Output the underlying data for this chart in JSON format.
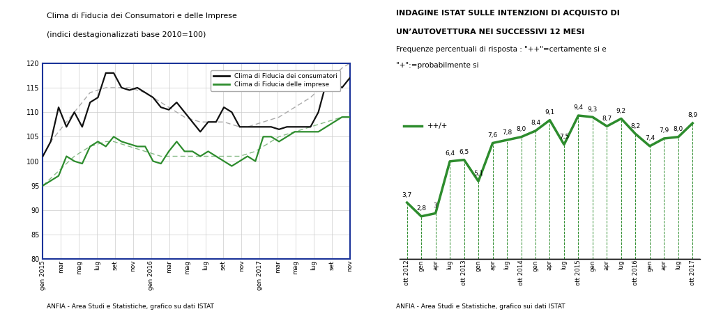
{
  "left_title_line1": "Clima di Fiducia dei Consumatori e delle Imprese",
  "left_title_line2": "(indici destagionalizzati base 2010=100)",
  "left_footer": "ANFIA - Area Studi e Statistiche, grafico su dati ISTAT",
  "left_legend1": "Clima di Fiducia dei consumatori",
  "left_legend2": "Clima di Fiducia delle imprese",
  "left_xticks": [
    "gen 2015",
    "mar",
    "mag",
    "lug",
    "set",
    "nov",
    "gen 2016",
    "mar",
    "mag",
    "lug",
    "set",
    "nov",
    "gen 2017",
    "mar",
    "mag",
    "lug",
    "set",
    "nov"
  ],
  "left_ylim": [
    80,
    120
  ],
  "left_yticks": [
    80,
    85,
    90,
    95,
    100,
    105,
    110,
    115,
    120
  ],
  "consumers": [
    101,
    104,
    111,
    107,
    110,
    107,
    112,
    113,
    118,
    118,
    115,
    114.5,
    115,
    114,
    113,
    111,
    110.5,
    112,
    110,
    108,
    106,
    108,
    108,
    111,
    110,
    107,
    107,
    107,
    107,
    107,
    106.5,
    107,
    107,
    107,
    107,
    110,
    116,
    116,
    115,
    117
  ],
  "enterprises": [
    95,
    96,
    97,
    101,
    100,
    99.5,
    103,
    104,
    103,
    105,
    104,
    103.5,
    103,
    103,
    100,
    99.5,
    102,
    104,
    102,
    102,
    101,
    102,
    101,
    100,
    99,
    100,
    101,
    100,
    105,
    105,
    104,
    105,
    106,
    106,
    106,
    106,
    107,
    108,
    109,
    109
  ],
  "consumers_trend": [
    101,
    104,
    106,
    108,
    110,
    112,
    114,
    114.5,
    115,
    115,
    115,
    115,
    114.5,
    114,
    113,
    112,
    111,
    110,
    109,
    108.5,
    108,
    108,
    108,
    108,
    107.5,
    107,
    107,
    107.5,
    108,
    108.5,
    109,
    110,
    111,
    112,
    113,
    114.5,
    116,
    117.5,
    119,
    120
  ],
  "enterprises_trend": [
    95,
    96.5,
    98,
    99.5,
    101,
    102,
    103,
    103.5,
    104,
    104,
    103.5,
    103,
    102.5,
    102,
    101.5,
    101,
    101,
    101,
    101,
    101,
    101,
    101,
    101,
    101,
    101,
    101,
    101.5,
    102,
    103,
    104,
    105,
    105.5,
    106,
    106.5,
    107,
    107.5,
    108,
    108.5,
    109,
    109
  ],
  "right_title1": "INDAGINE ISTAT SULLE INTENZIONI DI ACQUISTO DI",
  "right_title2": "UN’AUTOVETTURA NEI SUCCESSIVI 12 MESI",
  "right_subtitle1": "Frequenze percentuali di risposta : \"++\"=certamente si e",
  "right_subtitle2": "\"+\":=probabilmente si",
  "right_footer": "ANFIA - Area Studi e Statistiche, grafico sui dati ISTAT",
  "right_legend": "++/+",
  "right_xticks": [
    "ott 2012",
    "gen",
    "apr",
    "lug",
    "ott 2013",
    "gen",
    "apr",
    "lug",
    "ott 2014",
    "gen",
    "apr",
    "lug",
    "ott 2015",
    "gen",
    "apr",
    "lug",
    "ott 2016",
    "gen",
    "apr",
    "lug",
    "ott 2017"
  ],
  "right_values": [
    3.7,
    2.8,
    3.0,
    6.4,
    6.5,
    5.1,
    7.6,
    7.8,
    8.0,
    8.4,
    9.1,
    7.5,
    9.4,
    9.3,
    8.7,
    9.2,
    8.2,
    7.4,
    7.9,
    8.0,
    8.9
  ],
  "right_labels": [
    "3,7",
    "2,8",
    "3",
    "6,4",
    "6,5",
    "5,1",
    "7,6",
    "7,8",
    "8,0",
    "8,4",
    "9,1",
    "7,5",
    "9,4",
    "9,3",
    "8,7",
    "9,2",
    "8,2",
    "7,4",
    "7,9",
    "8,0",
    "8,9"
  ],
  "right_ylim": [
    0,
    12
  ],
  "color_black": "#111111",
  "color_green": "#2d8c2d",
  "color_dashed_black": "#aaaaaa",
  "color_dashed_green": "#88bb88",
  "border_color": "#1a3399",
  "grid_color": "#cccccc",
  "bg_color": "#ffffff"
}
